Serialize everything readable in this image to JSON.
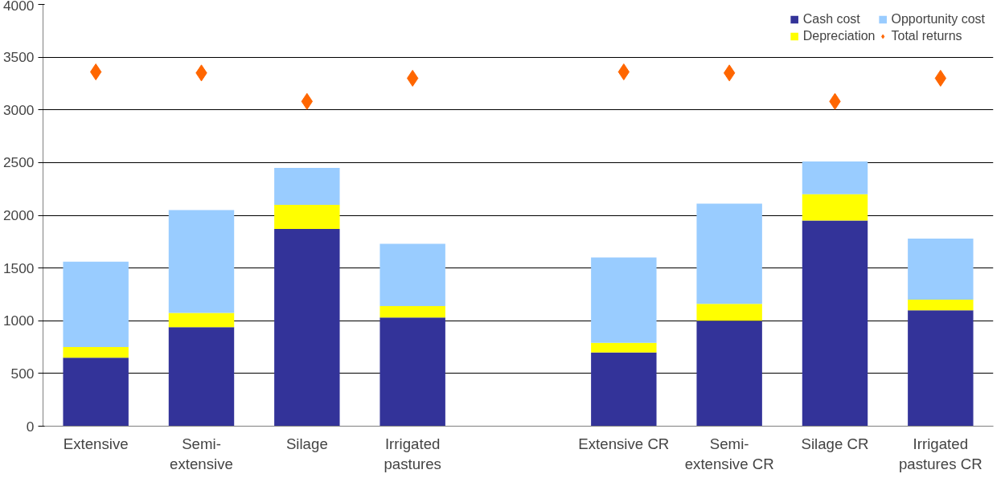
{
  "chart_data": {
    "type": "bar",
    "stacked": true,
    "categories": [
      "Extensive",
      "Semi-extensive",
      "Silage",
      "Irrigated pastures",
      null,
      "Extensive CR",
      "Semi-extensive CR",
      "Silage CR",
      "Irrigated pastures CR"
    ],
    "series": [
      {
        "name": "Cash cost",
        "color": "#333399",
        "values": [
          650,
          940,
          1870,
          1030,
          null,
          700,
          1000,
          1950,
          1100
        ]
      },
      {
        "name": "Depreciation",
        "color": "#ffff00",
        "values": [
          100,
          135,
          230,
          110,
          null,
          90,
          160,
          250,
          100
        ]
      },
      {
        "name": "Opportunity cost",
        "color": "#99ccff",
        "values": [
          810,
          975,
          350,
          590,
          null,
          810,
          950,
          310,
          580
        ]
      },
      {
        "name": "Total returns",
        "color": "#ff6600",
        "type": "scatter",
        "marker": "diamond",
        "values": [
          3360,
          3350,
          3080,
          3300,
          null,
          3360,
          3350,
          3080,
          3300
        ]
      }
    ],
    "ylim": [
      0,
      4000
    ],
    "yticks": [
      0,
      500,
      1000,
      1500,
      2000,
      2500,
      3000,
      3500,
      4000
    ],
    "grid": "y",
    "legend": "top right"
  }
}
